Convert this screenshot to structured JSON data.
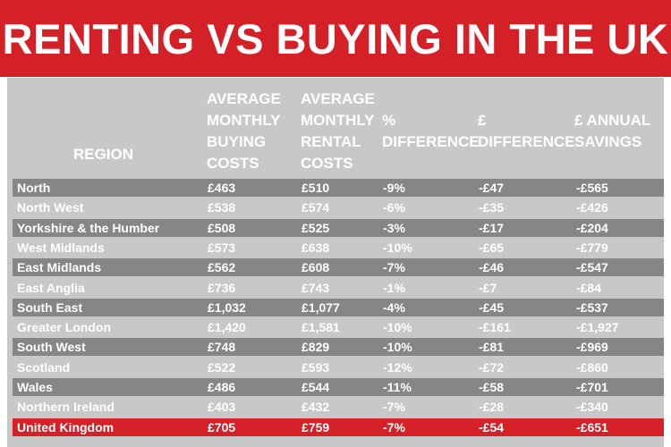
{
  "title": "RENTING VS BUYING IN THE UK",
  "headers": {
    "region": "REGION",
    "buying": [
      "AVERAGE",
      "MONTHLY",
      "BUYING",
      "COSTS"
    ],
    "rental": [
      "AVERAGE",
      "MONTHLY",
      "RENTAL",
      "COSTS"
    ],
    "pct": [
      "%",
      "DIFFERENCE"
    ],
    "diff": [
      "£",
      "DIFFERENCE"
    ],
    "savings": [
      "£ ANNUAL",
      "SAVINGS"
    ]
  },
  "colors": {
    "accent_red": "#d42027",
    "row_dark": "#868686",
    "row_light": "#c8c8c8",
    "text": "#ffffff"
  },
  "chart_data": {
    "type": "table",
    "title": "RENTING VS BUYING IN THE UK",
    "columns": [
      "REGION",
      "AVERAGE MONTHLY BUYING COSTS",
      "AVERAGE MONTHLY RENTAL COSTS",
      "% DIFFERENCE",
      "£ DIFFERENCE",
      "£ ANNUAL SAVINGS"
    ],
    "rows": [
      [
        "North",
        "£463",
        "£510",
        "-9%",
        "-£47",
        "-£565"
      ],
      [
        "North West",
        "£538",
        "£574",
        "-6%",
        "-£35",
        "-£426"
      ],
      [
        "Yorkshire & the Humber",
        "£508",
        "£525",
        "-3%",
        "-£17",
        "-£204"
      ],
      [
        "West Midlands",
        "£573",
        "£638",
        "-10%",
        "-£65",
        "-£779"
      ],
      [
        "East Midlands",
        "£562",
        "£608",
        "-7%",
        "-£46",
        "-£547"
      ],
      [
        "East Anglia",
        "£736",
        "£743",
        "-1%",
        "-£7",
        "-£84"
      ],
      [
        "South East",
        "£1,032",
        "£1,077",
        "-4%",
        "-£45",
        "-£537"
      ],
      [
        "Greater London",
        "£1,420",
        "£1,581",
        "-10%",
        "-£161",
        "-£1,927"
      ],
      [
        "South West",
        "£748",
        "£829",
        "-10%",
        "-£81",
        "-£969"
      ],
      [
        "Scotland",
        "£522",
        "£593",
        "-12%",
        "-£72",
        "-£860"
      ],
      [
        "Wales",
        "£486",
        "£544",
        "-11%",
        "-£58",
        "-£701"
      ],
      [
        "Northern Ireland",
        "£403",
        "£432",
        "-7%",
        "-£28",
        "-£340"
      ],
      [
        "United Kingdom",
        "£705",
        "£759",
        "-7%",
        "-£54",
        "-£651"
      ]
    ],
    "highlight_row": "United Kingdom"
  }
}
